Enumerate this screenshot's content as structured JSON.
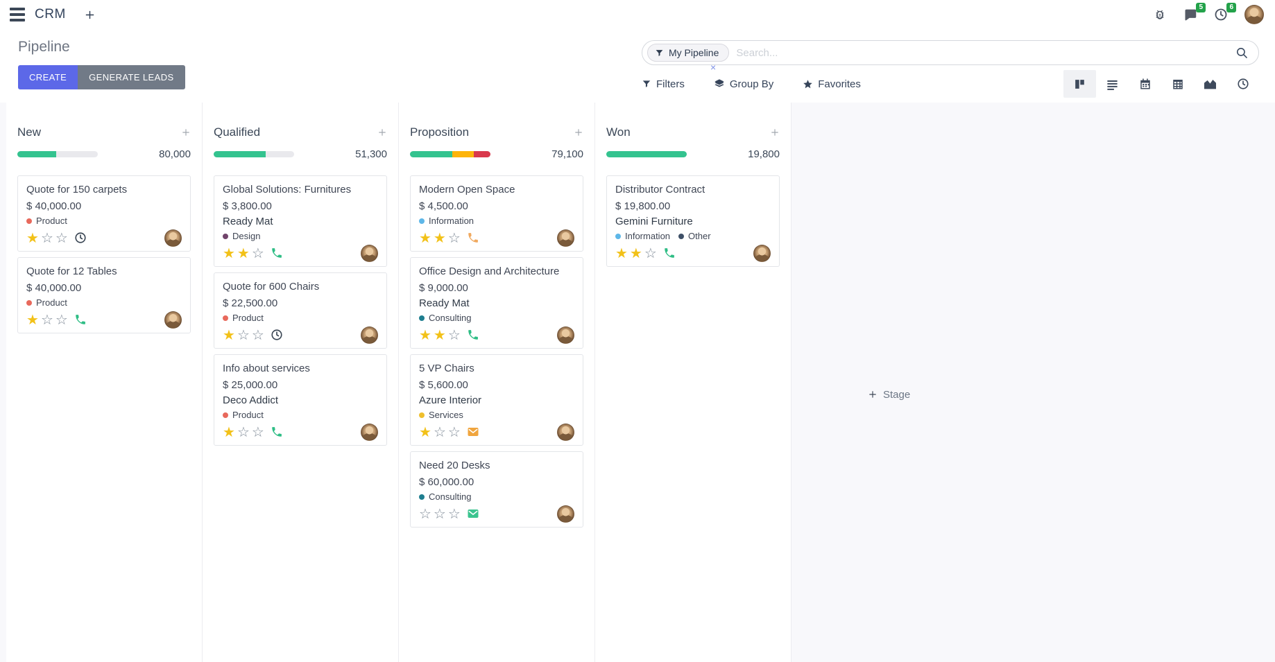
{
  "navbar": {
    "app": "CRM",
    "messages_badge": "5",
    "activities_badge": "6"
  },
  "control_panel": {
    "title": "Pipeline",
    "create_label": "CREATE",
    "generate_leads_label": "GENERATE LEADS",
    "search": {
      "facet_label": "My Pipeline",
      "placeholder": "Search..."
    },
    "filters_label": "Filters",
    "group_by_label": "Group By",
    "favorites_label": "Favorites",
    "view_switcher": {
      "active": "kanban",
      "views": [
        "kanban",
        "list",
        "calendar",
        "pivot",
        "graph",
        "activity"
      ]
    }
  },
  "kanban": {
    "add_stage_label": "Stage",
    "columns": [
      {
        "name": "New",
        "amount": "80,000",
        "progress": {
          "segments": [
            {
              "color": "#34c38f",
              "pct": 48
            }
          ],
          "track": "#e9e9ed"
        },
        "cards": [
          {
            "title": "Quote for 150 carpets",
            "amount": "$ 40,000.00",
            "tags": [
              {
                "label": "Product",
                "color": "#e8695c"
              }
            ],
            "stars_filled": 1,
            "stars_on": "★",
            "stars_off": "☆☆",
            "activity": "clock",
            "activity_color": "#3a4654"
          },
          {
            "title": "Quote for 12 Tables",
            "amount": "$ 40,000.00",
            "tags": [
              {
                "label": "Product",
                "color": "#e8695c"
              }
            ],
            "stars_filled": 1,
            "stars_on": "★",
            "stars_off": "☆☆",
            "activity": "phone",
            "activity_color": "#2ebd85"
          }
        ]
      },
      {
        "name": "Qualified",
        "amount": "51,300",
        "progress": {
          "segments": [
            {
              "color": "#34c38f",
              "pct": 65
            }
          ],
          "track": "#e9e9ed"
        },
        "cards": [
          {
            "title": "Global Solutions: Furnitures",
            "amount": "$ 3,800.00",
            "partner": "Ready Mat",
            "tags": [
              {
                "label": "Design",
                "color": "#71446b"
              }
            ],
            "stars_filled": 2,
            "stars_on": "★★",
            "stars_off": "☆",
            "activity": "phone",
            "activity_color": "#2ebd85"
          },
          {
            "title": "Quote for 600 Chairs",
            "amount": "$ 22,500.00",
            "tags": [
              {
                "label": "Product",
                "color": "#e8695c"
              }
            ],
            "stars_filled": 1,
            "stars_on": "★",
            "stars_off": "☆☆",
            "activity": "clock",
            "activity_color": "#3a4654"
          },
          {
            "title": "Info about services",
            "amount": "$ 25,000.00",
            "partner": "Deco Addict",
            "tags": [
              {
                "label": "Product",
                "color": "#e8695c"
              }
            ],
            "stars_filled": 1,
            "stars_on": "★",
            "stars_off": "☆☆",
            "activity": "phone",
            "activity_color": "#2ebd85"
          }
        ]
      },
      {
        "name": "Proposition",
        "amount": "79,100",
        "progress": {
          "segments": [
            {
              "color": "#34c38f",
              "pct": 53
            },
            {
              "color": "#fdb40a",
              "pct": 26
            },
            {
              "color": "#d9394c",
              "pct": 21
            }
          ],
          "track": "#e9e9ed"
        },
        "cards": [
          {
            "title": "Modern Open Space",
            "amount": "$ 4,500.00",
            "tags": [
              {
                "label": "Information",
                "color": "#5eb7e8"
              }
            ],
            "stars_filled": 2,
            "stars_on": "★★",
            "stars_off": "☆",
            "activity": "phone",
            "activity_color": "#f0a95f"
          },
          {
            "title": "Office Design and Architecture",
            "amount": "$ 9,000.00",
            "partner": "Ready Mat",
            "tags": [
              {
                "label": "Consulting",
                "color": "#1e7e8f"
              }
            ],
            "stars_filled": 2,
            "stars_on": "★★",
            "stars_off": "☆",
            "activity": "phone",
            "activity_color": "#2ebd85"
          },
          {
            "title": "5 VP Chairs",
            "amount": "$ 5,600.00",
            "partner": "Azure Interior",
            "tags": [
              {
                "label": "Services",
                "color": "#efbf2d"
              }
            ],
            "stars_filled": 1,
            "stars_on": "★",
            "stars_off": "☆☆",
            "activity": "envelope",
            "activity_color": "#f0a53e"
          },
          {
            "title": "Need 20 Desks",
            "amount": "$ 60,000.00",
            "tags": [
              {
                "label": "Consulting",
                "color": "#1e7e8f"
              }
            ],
            "stars_filled": 0,
            "stars_on": "",
            "stars_off": "☆☆☆",
            "activity": "envelope",
            "activity_color": "#3bc48f"
          }
        ]
      },
      {
        "name": "Won",
        "amount": "19,800",
        "progress": {
          "segments": [
            {
              "color": "#34c38f",
              "pct": 100
            }
          ],
          "track": "#e9e9ed"
        },
        "cards": [
          {
            "title": "Distributor Contract",
            "amount": "$ 19,800.00",
            "partner": "Gemini Furniture",
            "tags": [
              {
                "label": "Information",
                "color": "#5eb7e8"
              },
              {
                "label": "Other",
                "color": "#3e5067"
              }
            ],
            "stars_filled": 2,
            "stars_on": "★★",
            "stars_off": "☆",
            "activity": "phone",
            "activity_color": "#2ebd85"
          }
        ]
      }
    ]
  }
}
